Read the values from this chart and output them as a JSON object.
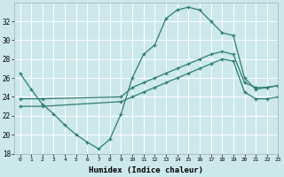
{
  "xlabel": "Humidex (Indice chaleur)",
  "background_color": "#cce8ec",
  "grid_color": "#ffffff",
  "line_color": "#2e7d6e",
  "xlim": [
    -0.5,
    23
  ],
  "ylim": [
    18,
    34
  ],
  "xticks": [
    0,
    1,
    2,
    3,
    4,
    5,
    6,
    7,
    8,
    9,
    10,
    11,
    12,
    13,
    14,
    15,
    16,
    17,
    18,
    19,
    20,
    21,
    22,
    23
  ],
  "yticks": [
    18,
    20,
    22,
    24,
    26,
    28,
    30,
    32
  ],
  "line1_x": [
    0,
    1,
    2,
    3,
    4,
    5,
    6,
    7,
    8,
    9,
    10,
    11,
    12,
    13,
    14,
    15,
    16,
    17,
    18,
    19,
    20,
    21,
    22,
    23
  ],
  "line1_y": [
    26.5,
    24.8,
    23.2,
    22.2,
    21.0,
    20.0,
    19.2,
    18.5,
    19.5,
    22.2,
    26.0,
    28.5,
    29.5,
    32.3,
    33.2,
    33.5,
    33.2,
    32.0,
    30.8,
    30.5,
    26.0,
    24.8,
    25.0,
    25.2
  ],
  "line2_x": [
    0,
    2,
    9,
    10,
    11,
    12,
    13,
    14,
    15,
    16,
    17,
    18,
    19,
    20,
    21,
    22,
    23
  ],
  "line2_y": [
    23.8,
    23.8,
    24.0,
    25.0,
    25.5,
    26.0,
    26.5,
    27.0,
    27.5,
    28.0,
    28.5,
    28.8,
    28.5,
    25.5,
    25.0,
    25.0,
    25.2
  ],
  "line3_x": [
    0,
    2,
    9,
    10,
    11,
    12,
    13,
    14,
    15,
    16,
    17,
    18,
    19,
    20,
    21,
    22,
    23
  ],
  "line3_y": [
    23.0,
    23.0,
    23.5,
    24.0,
    24.5,
    25.0,
    25.5,
    26.0,
    26.5,
    27.0,
    27.5,
    28.0,
    27.8,
    24.5,
    23.8,
    23.8,
    24.0
  ]
}
